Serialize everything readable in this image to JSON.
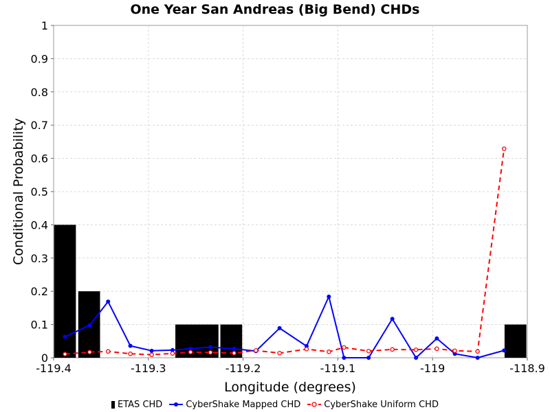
{
  "chart_data": {
    "type": "bar",
    "title": "One Year San Andreas (Big Bend) CHDs",
    "xlabel": "Longitude (degrees)",
    "ylabel": "Conditional Probability",
    "xlim": [
      -119.4,
      -118.9
    ],
    "ylim": [
      0,
      1
    ],
    "xticks": [
      -119.4,
      -119.3,
      -119.2,
      -119.1,
      -119,
      -118.9
    ],
    "xtick_labels": [
      "-119.4",
      "-119.3",
      "-119.2",
      "-119.1",
      "-119",
      "-118.9"
    ],
    "yticks": [
      0,
      0.1,
      0.2,
      0.3,
      0.4,
      0.5,
      0.6,
      0.7,
      0.8,
      0.9,
      1
    ],
    "ytick_labels": [
      "0",
      "0.1",
      "0.2",
      "0.3",
      "0.4",
      "0.5",
      "0.6",
      "0.7",
      "0.8",
      "0.9",
      "1"
    ],
    "grid": true,
    "legend_position": "bottom",
    "series": [
      {
        "name": "ETAS CHD",
        "kind": "bar",
        "color": "#000000",
        "bar_width": 0.023,
        "x": [
          -119.388,
          -119.3625,
          -119.26,
          -119.2375,
          -119.2125,
          -118.9125
        ],
        "values": [
          0.4,
          0.2,
          0.1,
          0.1,
          0.1,
          0.1
        ]
      },
      {
        "name": "CyberShake Mapped CHD",
        "kind": "line",
        "color": "#0000ff",
        "marker": "filled-circle",
        "x": [
          -119.388,
          -119.362,
          -119.3425,
          -119.319,
          -119.2965,
          -119.2745,
          -119.2555,
          -119.2345,
          -119.2095,
          -119.1865,
          -119.1615,
          -119.133,
          -119.1095,
          -119.0935,
          -119.0675,
          -119.0425,
          -119.0175,
          -118.9955,
          -118.9765,
          -118.9525,
          -118.9245
        ],
        "y": [
          0.063,
          0.098,
          0.169,
          0.036,
          0.021,
          0.023,
          0.027,
          0.032,
          0.027,
          0.02,
          0.089,
          0.035,
          0.184,
          0.0,
          0.0,
          0.117,
          0.0,
          0.058,
          0.012,
          0.0,
          0.022
        ]
      },
      {
        "name": "CyberShake Uniform CHD",
        "kind": "line",
        "color": "#ff0000",
        "dashed": true,
        "marker": "open-circle",
        "x": [
          -119.388,
          -119.362,
          -119.3425,
          -119.319,
          -119.2965,
          -119.2745,
          -119.2555,
          -119.2345,
          -119.2095,
          -119.1865,
          -119.1615,
          -119.133,
          -119.1095,
          -119.0935,
          -119.0675,
          -119.0425,
          -119.0175,
          -118.9955,
          -118.9765,
          -118.9525,
          -118.9245
        ],
        "y": [
          0.011,
          0.017,
          0.019,
          0.012,
          0.009,
          0.013,
          0.017,
          0.016,
          0.014,
          0.022,
          0.014,
          0.026,
          0.018,
          0.031,
          0.02,
          0.025,
          0.024,
          0.027,
          0.021,
          0.019,
          0.629
        ]
      }
    ]
  }
}
